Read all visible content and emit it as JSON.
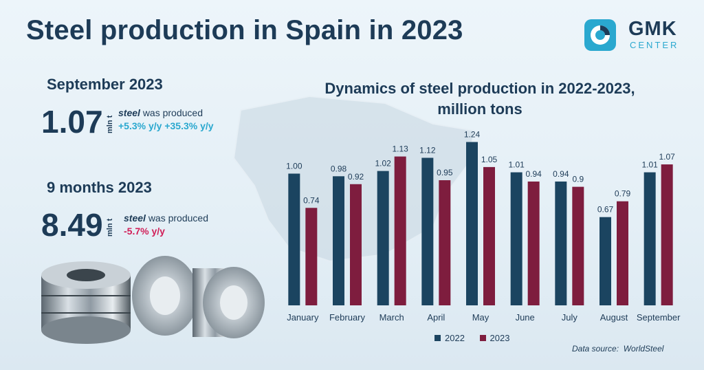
{
  "header": {
    "title": "Steel production in Spain in 2023"
  },
  "logo": {
    "line1": "GMK",
    "line2": "CENTER"
  },
  "september": {
    "period": "September 2023",
    "value": "1.07",
    "unit": "mln t",
    "word": "steel",
    "text": "was produced",
    "change_yoy": "+5.3% y/y",
    "change_mom": "+35.3% y/y"
  },
  "nine_months": {
    "period": "9 months 2023",
    "value": "8.49",
    "unit": "mln t",
    "word": "steel",
    "text": "was produced",
    "change_yoy": "-5.7% y/y"
  },
  "colors": {
    "y2022": "#1b4460",
    "y2023": "#7e1d3e",
    "accent": "#2aa8cf",
    "negative": "#d11e58"
  },
  "chart_data": {
    "type": "bar",
    "title_line1": "Dynamics of steel production in 2022-2023,",
    "title_line2": "million tons",
    "categories": [
      "January",
      "February",
      "March",
      "April",
      "May",
      "June",
      "July",
      "August",
      "September"
    ],
    "series": [
      {
        "name": "2022",
        "values": [
          1.0,
          0.98,
          1.02,
          1.12,
          1.24,
          1.01,
          0.94,
          0.67,
          1.01
        ],
        "labels": [
          "1.00",
          "0.98",
          "1.02",
          "1.12",
          "1.24",
          "1.01",
          "0.94",
          "0.67",
          "1.01"
        ]
      },
      {
        "name": "2023",
        "values": [
          0.74,
          0.92,
          1.13,
          0.95,
          1.05,
          0.94,
          0.9,
          0.79,
          1.07
        ],
        "labels": [
          "0.74",
          "0.92",
          "1.13",
          "0.95",
          "1.05",
          "0.94",
          "0.9",
          "0.79",
          "1.07"
        ]
      }
    ],
    "ylim": [
      0,
      1.3
    ],
    "grid": false,
    "legend_position": "bottom"
  },
  "source": {
    "label": "Data source:",
    "name": "WorldSteel"
  }
}
